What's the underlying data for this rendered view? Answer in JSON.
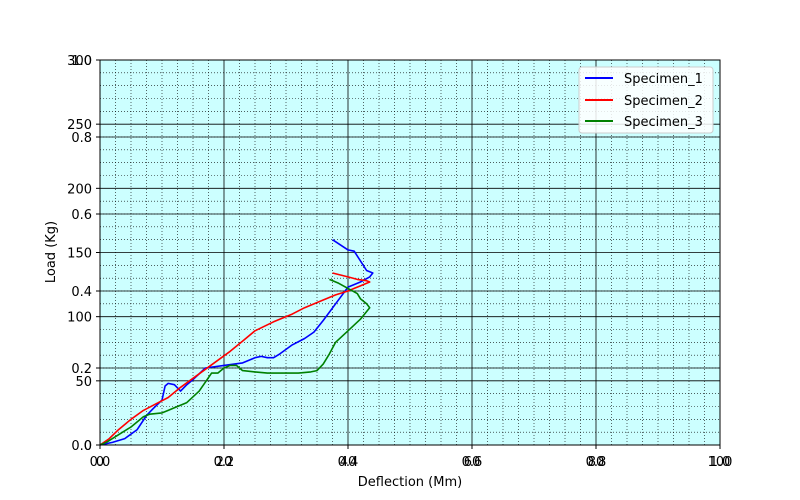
{
  "chart_data": {
    "type": "line",
    "xlabel": "Deflection (Mm)",
    "ylabel": "Load (Kg)",
    "xlim": [
      0,
      100
    ],
    "ylim": [
      0,
      300
    ],
    "x_ticks": [
      0,
      20,
      40,
      60,
      80,
      100
    ],
    "x_tick_labels": [
      "0",
      "20",
      "40",
      "60",
      "80",
      "100"
    ],
    "x_ticks_overlay": [
      0,
      0.2,
      0.4,
      0.6,
      0.8,
      1.0
    ],
    "x_tick_labels_overlay": [
      "0.0",
      "0.2",
      "0.4",
      "0.6",
      "0.8",
      "1.0"
    ],
    "y_ticks": [
      0,
      50,
      100,
      150,
      200,
      250,
      300
    ],
    "y_tick_labels": [
      "0",
      "50",
      "100",
      "150",
      "200",
      "250",
      "300"
    ],
    "y_ticks_overlay": [
      0,
      0.2,
      0.4,
      0.6,
      0.8,
      1.0
    ],
    "y_tick_labels_overlay": [
      "0.0",
      "0.2",
      "0.4",
      "0.6",
      "0.8",
      "1.0"
    ],
    "grid": true,
    "background": "#ccffff",
    "legend_position": "top-right",
    "series": [
      {
        "name": "Specimen_1",
        "color": "#0000ff",
        "x": [
          0,
          2,
          4,
          6,
          7.5,
          8.5,
          10,
          10.5,
          11,
          12,
          13,
          14,
          15,
          17,
          20,
          23,
          25,
          26,
          27,
          28,
          29,
          31,
          33,
          34.5,
          36,
          38,
          40,
          42,
          43.5,
          44,
          43,
          41,
          40,
          37.5
        ],
        "y": [
          0,
          2,
          5,
          12,
          23,
          28,
          35,
          46,
          48,
          47,
          42,
          47,
          51,
          60,
          62,
          64,
          68,
          69,
          68,
          68,
          71,
          78,
          83,
          88,
          97,
          110,
          123,
          127,
          131,
          134,
          136,
          151,
          152,
          160
        ]
      },
      {
        "name": "Specimen_2",
        "color": "#ff0000",
        "x": [
          0,
          1.5,
          3,
          5,
          7,
          9,
          11,
          13,
          15,
          17,
          19,
          21,
          23,
          25,
          28,
          31,
          33,
          36,
          38,
          40,
          41,
          42,
          43,
          43.5,
          43,
          41.5,
          40,
          37.5
        ],
        "y": [
          0,
          5,
          12,
          20,
          27,
          32,
          37,
          45,
          52,
          59,
          66,
          73,
          81,
          89,
          96,
          102,
          107,
          113,
          117,
          120,
          122,
          124,
          126,
          127,
          128,
          129,
          131,
          134
        ]
      },
      {
        "name": "Specimen_3",
        "color": "#008000",
        "x": [
          0,
          1,
          2,
          3,
          5,
          7,
          8,
          10,
          11,
          12,
          14,
          16,
          18,
          19,
          20,
          21,
          22,
          23,
          25,
          27,
          28,
          30,
          32,
          34,
          35,
          36,
          37,
          38,
          40,
          42,
          43.5,
          43,
          42,
          41.5,
          40,
          38.5,
          37
        ],
        "y": [
          0,
          2,
          5,
          8,
          14,
          22,
          24,
          25,
          27,
          29,
          33,
          42,
          56,
          56,
          60,
          62,
          62,
          58,
          57,
          56,
          56,
          56,
          56,
          57,
          58,
          63,
          71,
          80,
          89,
          98,
          107,
          110,
          114,
          118,
          122,
          126,
          129
        ]
      }
    ]
  }
}
